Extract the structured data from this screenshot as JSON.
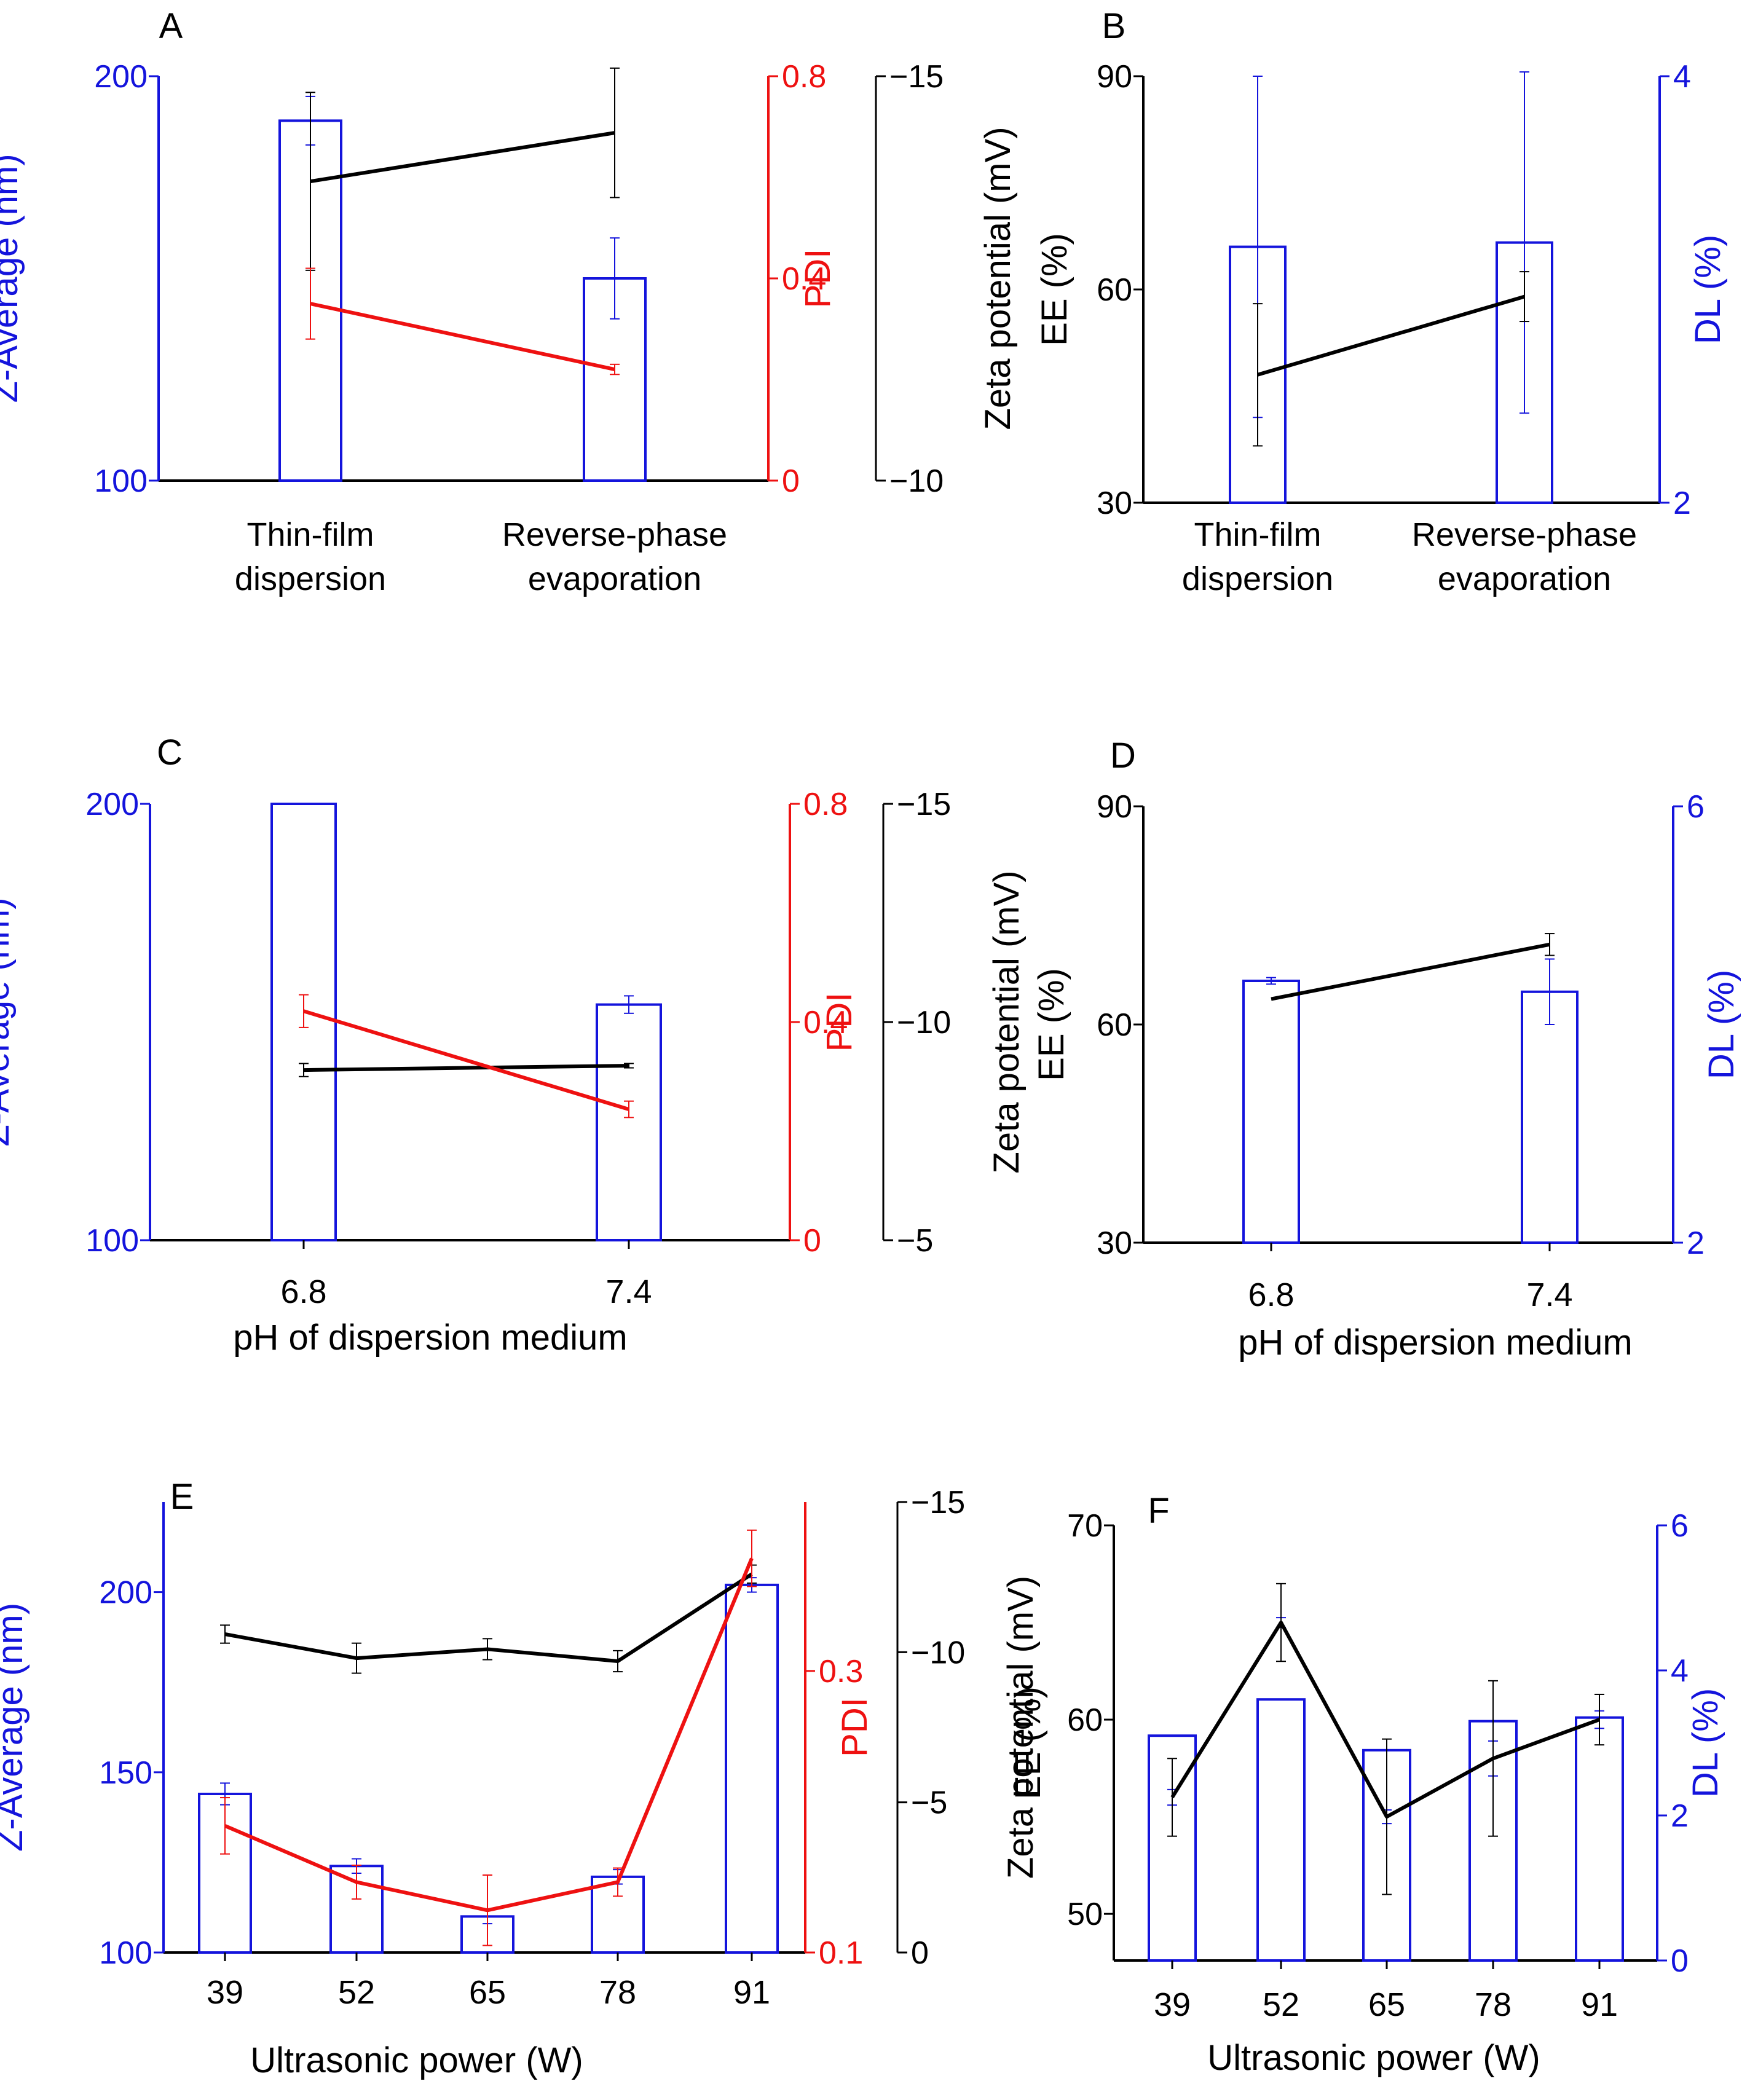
{
  "colors": {
    "blue": "#1414dc",
    "red": "#ee1111",
    "black": "#000000"
  },
  "chart_data": [
    {
      "panel": "A",
      "type": "bar",
      "x_type": "category",
      "categories": [
        "Thin-film\ndispersion",
        "Reverse-phase\nevaporation"
      ],
      "xlabel": "",
      "left_axis": {
        "label": "Z-Average (nm)",
        "range": [
          100,
          200
        ],
        "ticks": [
          100,
          200
        ],
        "color": "blue"
      },
      "right_axes": [
        {
          "label": "PDI",
          "range": [
            0,
            0.8
          ],
          "ticks": [
            0,
            0.4,
            0.8
          ],
          "tick_labels": [
            "0",
            "0.4",
            "0.8"
          ],
          "color": "red"
        },
        {
          "label": "Zeta potential (mV)",
          "range": [
            -10,
            -15
          ],
          "ticks": [
            -10,
            -15
          ],
          "tick_labels": [
            "−10",
            "−15"
          ],
          "color": "black"
        }
      ],
      "bars": {
        "name": "Z-Average",
        "axis": 0,
        "values": [
          189,
          150
        ],
        "errors": [
          6,
          10
        ]
      },
      "series": [
        {
          "name": "Zeta potential",
          "axis": 2,
          "values": [
            -13.7,
            -14.3
          ],
          "errors": [
            1.1,
            0.8
          ],
          "color": "black"
        },
        {
          "name": "PDI",
          "axis": 1,
          "values": [
            0.35,
            0.22
          ],
          "errors": [
            0.07,
            0.01
          ],
          "color": "red"
        }
      ]
    },
    {
      "panel": "B",
      "type": "bar",
      "x_type": "category",
      "categories": [
        "Thin-film\ndispersion",
        "Reverse-phase\nevaporation"
      ],
      "xlabel": "",
      "left_axis": {
        "label": "EE (%)",
        "range": [
          30,
          90
        ],
        "ticks": [
          30,
          60,
          90
        ],
        "color": "black"
      },
      "right_axes": [
        {
          "label": "DL (%)",
          "range": [
            2,
            4
          ],
          "ticks": [
            2,
            4
          ],
          "tick_labels": [
            "2",
            "4"
          ],
          "color": "blue"
        }
      ],
      "bars": {
        "name": "DL",
        "axis": 1,
        "values": [
          3.2,
          3.22
        ],
        "errors": [
          0.8,
          0.8
        ]
      },
      "series": [
        {
          "name": "EE",
          "axis": 0,
          "values": [
            48,
            59
          ],
          "errors": [
            10,
            3.5
          ],
          "color": "black"
        }
      ]
    },
    {
      "panel": "C",
      "type": "bar",
      "x_type": "category",
      "categories": [
        "6.8",
        "7.4"
      ],
      "xlabel": "pH of dispersion medium",
      "left_axis": {
        "label": "Z-Average (nm)",
        "range": [
          100,
          200
        ],
        "ticks": [
          100,
          200
        ],
        "color": "blue"
      },
      "right_axes": [
        {
          "label": "PDI",
          "range": [
            0,
            0.8
          ],
          "ticks": [
            0,
            0.4,
            0.8
          ],
          "tick_labels": [
            "0",
            "0.4",
            "0.8"
          ],
          "color": "red"
        },
        {
          "label": "Zeta potential (mV)",
          "range": [
            -5,
            -15
          ],
          "ticks": [
            -5,
            -10,
            -15
          ],
          "tick_labels": [
            "−5",
            "−10",
            "−15"
          ],
          "color": "black"
        }
      ],
      "bars": {
        "name": "Z-Average",
        "axis": 0,
        "values": [
          200,
          154
        ],
        "errors": [
          0,
          2
        ]
      },
      "series": [
        {
          "name": "Zeta potential",
          "axis": 2,
          "values": [
            -8.9,
            -9.0
          ],
          "errors": [
            0.15,
            0.05
          ],
          "color": "black"
        },
        {
          "name": "PDI",
          "axis": 1,
          "values": [
            0.42,
            0.24
          ],
          "errors": [
            0.03,
            0.015
          ],
          "color": "red"
        }
      ]
    },
    {
      "panel": "D",
      "type": "bar",
      "x_type": "category",
      "categories": [
        "6.8",
        "7.4"
      ],
      "xlabel": "pH of dispersion medium",
      "left_axis": {
        "label": "EE (%)",
        "range": [
          30,
          90
        ],
        "ticks": [
          30,
          60,
          90
        ],
        "color": "black"
      },
      "right_axes": [
        {
          "label": "DL (%)",
          "range": [
            2,
            6
          ],
          "ticks": [
            2,
            6
          ],
          "tick_labels": [
            "2",
            "6"
          ],
          "color": "blue"
        }
      ],
      "bars": {
        "name": "DL",
        "axis": 1,
        "values": [
          4.4,
          4.3
        ],
        "errors": [
          0.03,
          0.3
        ]
      },
      "series": [
        {
          "name": "EE",
          "axis": 0,
          "values": [
            63.5,
            71
          ],
          "errors": [
            0,
            1.5
          ],
          "color": "black"
        }
      ]
    },
    {
      "panel": "E",
      "type": "bar",
      "x_type": "category",
      "categories": [
        "39",
        "52",
        "65",
        "78",
        "91"
      ],
      "xlabel": "Ultrasonic power (W)",
      "left_axis": {
        "label": "Z-Average (nm)",
        "range": [
          100,
          225
        ],
        "ticks": [
          100,
          150,
          200
        ],
        "color": "blue"
      },
      "right_axes": [
        {
          "label": "PDI",
          "range": [
            0.1,
            0.42
          ],
          "ticks": [
            0.1,
            0.3
          ],
          "tick_labels": [
            "0.1",
            "0.3"
          ],
          "color": "red"
        },
        {
          "label": "Zeta potential (mV)",
          "range": [
            0,
            -15
          ],
          "ticks": [
            0,
            -5,
            -10,
            -15
          ],
          "tick_labels": [
            "0",
            "−5",
            "−10",
            "−15"
          ],
          "color": "black"
        }
      ],
      "bars": {
        "name": "Z-Average",
        "axis": 0,
        "values": [
          144,
          124,
          110,
          121,
          202
        ],
        "errors": [
          3,
          2,
          2,
          2,
          2
        ]
      },
      "series": [
        {
          "name": "Zeta potential",
          "axis": 2,
          "values": [
            -10.6,
            -9.8,
            -10.1,
            -9.7,
            -12.6
          ],
          "errors": [
            0.3,
            0.5,
            0.35,
            0.35,
            0.3
          ],
          "color": "black"
        },
        {
          "name": "PDI",
          "axis": 1,
          "values": [
            0.19,
            0.15,
            0.13,
            0.15,
            0.38
          ],
          "errors": [
            0.02,
            0.012,
            0.025,
            0.01,
            0.02
          ],
          "color": "red"
        }
      ]
    },
    {
      "panel": "F",
      "type": "bar",
      "x_type": "category",
      "categories": [
        "39",
        "52",
        "65",
        "78",
        "91"
      ],
      "xlabel": "Ultrasonic power (W)",
      "left_axis": {
        "label": "EE (%)",
        "range": [
          47.6,
          70
        ],
        "ticks": [
          50,
          60,
          70
        ],
        "color": "black"
      },
      "right_axes": [
        {
          "label": "DL (%)",
          "range": [
            0,
            6
          ],
          "ticks": [
            0,
            2,
            4,
            6
          ],
          "tick_labels": [
            "0",
            "2",
            "4",
            "6"
          ],
          "color": "blue"
        }
      ],
      "bars": {
        "name": "DL",
        "axis": 1,
        "values": [
          3.1,
          3.6,
          2.9,
          3.3,
          3.35
        ],
        "errors": [
          0.4,
          0.25,
          0.35,
          0.9,
          0.45
        ],
        "error_axis": 0
      },
      "series": [
        {
          "name": "EE",
          "axis": 0,
          "values": [
            56,
            65,
            55,
            58,
            60
          ],
          "errors": [
            2,
            2,
            4,
            4,
            1.3
          ],
          "color": "black"
        }
      ]
    }
  ]
}
